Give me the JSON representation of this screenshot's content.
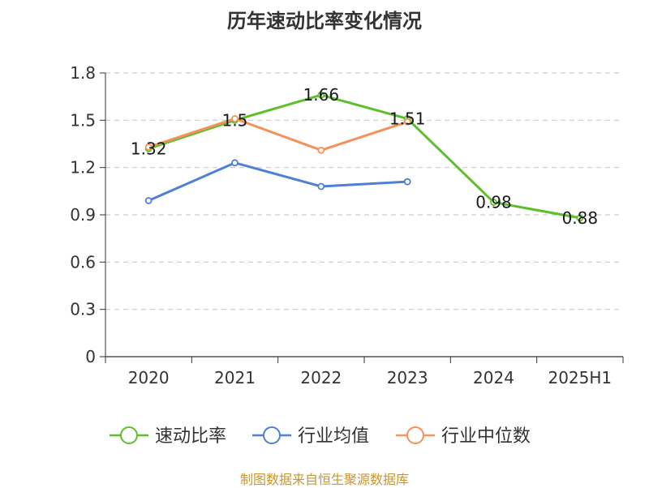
{
  "chart_data": {
    "type": "line",
    "title": "历年速动比率变化情况",
    "categories": [
      "2020",
      "2021",
      "2022",
      "2023",
      "2024",
      "2025H1"
    ],
    "ylim": [
      0,
      1.8
    ],
    "yticks": [
      "0",
      "0.3",
      "0.6",
      "0.9",
      "1.2",
      "1.5",
      "1.8"
    ],
    "grid": true,
    "legend_position": "bottom",
    "series": [
      {
        "name": "速动比率",
        "color": "#5dbf2a",
        "values": [
          1.32,
          1.5,
          1.66,
          1.51,
          0.98,
          0.88
        ],
        "labels": [
          "1.32",
          "1.5",
          "1.66",
          "1.51",
          "0.98",
          "0.88"
        ]
      },
      {
        "name": "行业均值",
        "color": "#4f7fd6",
        "values": [
          0.99,
          1.23,
          1.08,
          1.11,
          null,
          null
        ]
      },
      {
        "name": "行业中位数",
        "color": "#f4925a",
        "values": [
          1.33,
          1.51,
          1.31,
          1.49,
          null,
          null
        ]
      }
    ]
  },
  "source": "制图数据来自恒生聚源数据库"
}
